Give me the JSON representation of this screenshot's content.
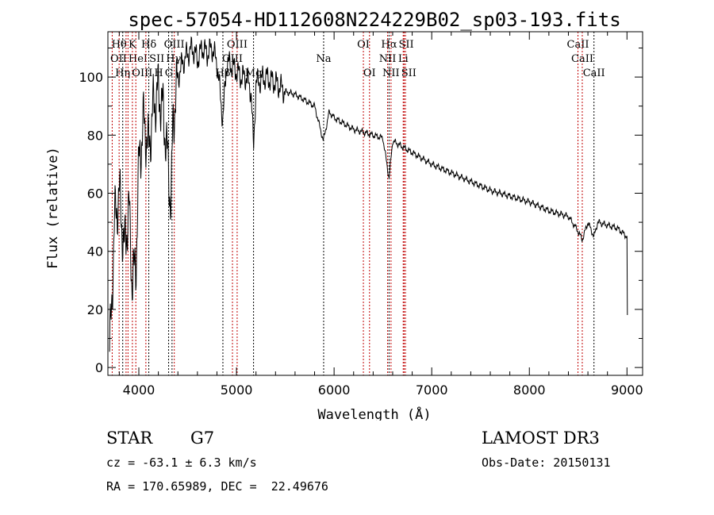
{
  "chart_data": {
    "type": "line",
    "title": "spec-57054-HD112608N224229B02_sp03-193.fits",
    "xlabel": "Wavelength (Å)",
    "ylabel": "Flux (relative)",
    "xlim": [
      3683,
      9160
    ],
    "ylim": [
      -2.7,
      115.6
    ],
    "xticks": [
      4000,
      5000,
      6000,
      7000,
      8000,
      9000
    ],
    "yticks": [
      0,
      20,
      40,
      60,
      80,
      100
    ],
    "grid": false,
    "series": [
      {
        "name": "spectrum",
        "x": [
          3700,
          3720,
          3750,
          3800,
          3850,
          3900,
          3930,
          3970,
          4000,
          4050,
          4100,
          4150,
          4200,
          4250,
          4300,
          4330,
          4350,
          4400,
          4450,
          4500,
          4550,
          4600,
          4650,
          4700,
          4750,
          4800,
          4861,
          4900,
          4950,
          5000,
          5050,
          5100,
          5150,
          5175,
          5200,
          5300,
          5400,
          5500,
          5600,
          5700,
          5800,
          5890,
          5950,
          6000,
          6100,
          6200,
          6300,
          6400,
          6500,
          6563,
          6600,
          6700,
          6800,
          6900,
          7000,
          7200,
          7400,
          7600,
          7800,
          8000,
          8200,
          8400,
          8498,
          8542,
          8600,
          8662,
          8700,
          8900,
          9000,
          9005
        ],
        "y": [
          5,
          20,
          50,
          60,
          40,
          55,
          30,
          35,
          70,
          85,
          75,
          90,
          95,
          88,
          70,
          55,
          85,
          100,
          105,
          108,
          110,
          106,
          110,
          108,
          110,
          105,
          85,
          105,
          104,
          102,
          100,
          100,
          95,
          75,
          98,
          100,
          98,
          95,
          94,
          92,
          90,
          78,
          88,
          86,
          84,
          82,
          81,
          80,
          79,
          65,
          78,
          76,
          74,
          72,
          70,
          67,
          64,
          61,
          59,
          57,
          54,
          52,
          47,
          44,
          50,
          45,
          50,
          48,
          45,
          10
        ]
      }
    ],
    "lines": [
      {
        "label": "Hθ",
        "wave": 3798,
        "row": 0,
        "color": "red"
      },
      {
        "label": "K",
        "wave": 3934,
        "row": 0,
        "color": "red"
      },
      {
        "label": "Hδ",
        "wave": 4102,
        "row": 0,
        "color": "black"
      },
      {
        "label": "OIII",
        "wave": 4363,
        "row": 0,
        "color": "red"
      },
      {
        "label": "OIII",
        "wave": 5007,
        "row": 0,
        "color": "red"
      },
      {
        "label": "OI",
        "wave": 6300,
        "row": 0,
        "color": "red"
      },
      {
        "label": "Hα",
        "wave": 6563,
        "row": 0,
        "color": "black"
      },
      {
        "label": "SII",
        "wave": 6717,
        "row": 0,
        "color": "red"
      },
      {
        "label": "CaII",
        "wave": 8498,
        "row": 0,
        "color": "red"
      },
      {
        "label": "OII",
        "wave": 3727,
        "row": 1,
        "color": "red"
      },
      {
        "label": "HeI",
        "wave": 3889,
        "row": 1,
        "color": "red"
      },
      {
        "label": "SII",
        "wave": 4072,
        "row": 1,
        "color": "red"
      },
      {
        "label": "Hγ",
        "wave": 4340,
        "row": 1,
        "color": "black"
      },
      {
        "label": "OIII",
        "wave": 4959,
        "row": 1,
        "color": "red"
      },
      {
        "label": "Na",
        "wave": 5893,
        "row": 1,
        "color": "black"
      },
      {
        "label": "NII",
        "wave": 6548,
        "row": 1,
        "color": "red"
      },
      {
        "label": "Li",
        "wave": 6708,
        "row": 1,
        "color": "red"
      },
      {
        "label": "CaII",
        "wave": 8542,
        "row": 1,
        "color": "red"
      },
      {
        "label": "OIII",
        "wave": 3869,
        "row": 2,
        "color": "red"
      },
      {
        "label": "Hη",
        "wave": 3835,
        "row": 2,
        "color": "black"
      },
      {
        "label": "H",
        "wave": 3969,
        "row": 2,
        "color": "red"
      },
      {
        "label": "G",
        "wave": 4305,
        "row": 2,
        "color": "black"
      },
      {
        "label": "Hβ",
        "wave": 4861,
        "row": 2,
        "color": "black"
      },
      {
        "label": "Mg",
        "wave": 5175,
        "row": 2,
        "color": "black"
      },
      {
        "label": "OI",
        "wave": 6363,
        "row": 2,
        "color": "red"
      },
      {
        "label": "NII",
        "wave": 6583,
        "row": 2,
        "color": "red"
      },
      {
        "label": "SII",
        "wave": 6731,
        "row": 2,
        "color": "red"
      },
      {
        "label": "CaII",
        "wave": 8662,
        "row": 2,
        "color": "black"
      }
    ]
  },
  "info": {
    "class": "STAR",
    "subclass": "G7",
    "survey": "LAMOST DR3",
    "cz": "cz = -63.1 ± 6.3 km/s",
    "obs_date": "Obs-Date: 20150131",
    "radec": "RA = 170.65989, DEC =  22.49676"
  }
}
